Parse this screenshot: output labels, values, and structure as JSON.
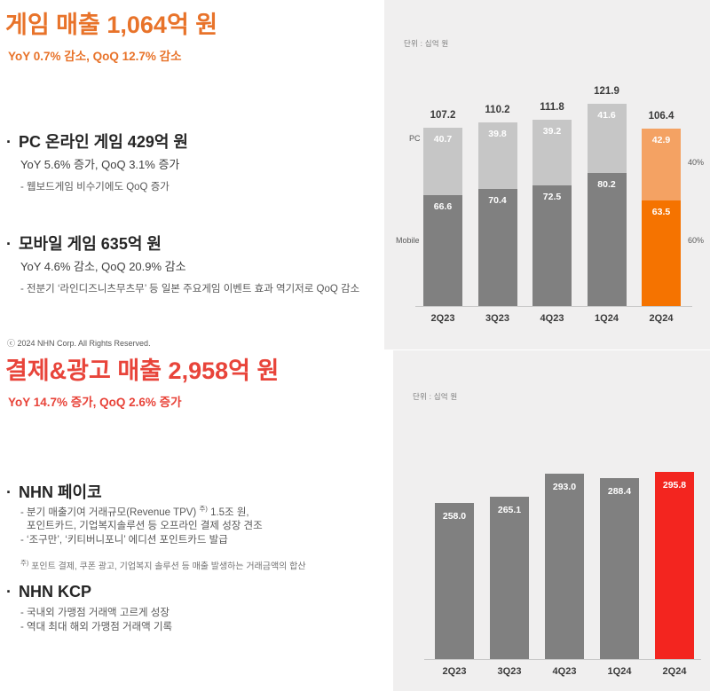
{
  "ui": {
    "bullet": "·"
  },
  "colors": {
    "accent_orange": "#e8732a",
    "accent_red": "#e8443a",
    "bar_gray_dark": "#808080",
    "bar_gray_light": "#c6c6c6",
    "bar_orange_dark": "#f57300",
    "bar_orange_light": "#f4a263",
    "bar_red": "#f3251f",
    "panel_bg": "#f0efef"
  },
  "game_section": {
    "title_prefix": "게임 매출 ",
    "title_value": "1,064억 원",
    "subtitle": "YoY 0.7% 감소, QoQ 12.7% 감소",
    "pc": {
      "heading": "PC 온라인 게임 429억 원",
      "sub": "YoY 5.6% 증가, QoQ 3.1% 증가",
      "note": "- 웹보드게임 비수기에도 QoQ 증가"
    },
    "mobile": {
      "heading": "모바일 게임 635억 원",
      "sub": "YoY 4.6% 감소, QoQ 20.9% 감소",
      "note": "- 전분기 ‘라인디즈니츠무츠무’ 등 일본 주요게임 이벤트 효과 역기저로 QoQ 감소"
    },
    "copyright": "ⓒ 2024 NHN Corp. All Rights Reserved."
  },
  "payment_section": {
    "title_prefix": "결제&광고 매출 ",
    "title_value": "2,958억 원",
    "subtitle": "YoY 14.7% 증가, QoQ 2.6% 증가",
    "payco": {
      "heading": "NHN 페이코",
      "line1_pre": "- 분기 매출기여 거래규모(Revenue TPV) ",
      "line1_sup": "주)",
      "line1_post": " 1.5조 원,",
      "line2": "포인트카드, 기업복지솔루션 등 오프라인 결제 성장 견조",
      "line3": "- ‘조구만’, ‘키티버니포니’ 에디션 포인트카드 발급",
      "footnote_sup": "주)",
      "footnote": " 포인트 결제, 쿠폰 광고, 기업복지 솔루션 등 매출 발생하는 거래금액의 합산"
    },
    "kcp": {
      "heading": "NHN KCP",
      "line1": "- 국내외 가맹점 거래액 고르게 성장",
      "line2": "- 역대 최대 해외 가맹점 거래액 기록"
    }
  },
  "chart_data": [
    {
      "type": "bar",
      "stacked": true,
      "title": "게임 매출 분기 추이",
      "unit_label": "단위 : 십억 원",
      "categories": [
        "2Q23",
        "3Q23",
        "4Q23",
        "1Q24",
        "2Q24"
      ],
      "series": [
        {
          "name": "Mobile",
          "values": [
            66.6,
            70.4,
            72.5,
            80.2,
            63.5
          ]
        },
        {
          "name": "PC",
          "values": [
            40.7,
            39.8,
            39.2,
            41.6,
            42.9
          ]
        }
      ],
      "totals": [
        107.2,
        110.2,
        111.8,
        121.9,
        106.4
      ],
      "share_labels": {
        "pc": "40%",
        "mobile": "60%"
      },
      "highlight_index": 4,
      "legend_position": "left-of-bars",
      "grid": false,
      "ylim": [
        0,
        185
      ]
    },
    {
      "type": "bar",
      "stacked": false,
      "title": "결제&광고 매출 분기 추이",
      "unit_label": "단위 : 십억 원",
      "categories": [
        "2Q23",
        "3Q23",
        "4Q23",
        "1Q24",
        "2Q24"
      ],
      "values": [
        258.0,
        265.1,
        293.0,
        288.4,
        295.8
      ],
      "highlight_index": 4,
      "grid": false,
      "ylim": [
        68,
        440
      ]
    }
  ]
}
